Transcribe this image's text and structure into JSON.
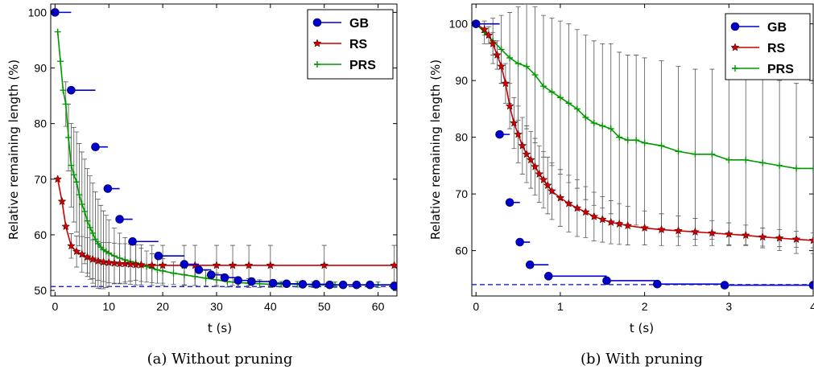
{
  "chart_data": [
    {
      "type": "line",
      "caption": "(a)  Without pruning",
      "xlabel": "t (s)",
      "ylabel": "Relative remaining length (%)",
      "xlim": [
        -0.8,
        63.5
      ],
      "ylim": [
        49,
        101.5
      ],
      "xticks": [
        0,
        10,
        20,
        30,
        40,
        50,
        60
      ],
      "yticks": [
        50,
        60,
        70,
        80,
        90,
        100
      ],
      "legend": {
        "position": "top-right",
        "entries": [
          "GB",
          "RS",
          "PRS"
        ]
      },
      "reference_line": {
        "y": 50.7,
        "style": "dashed",
        "color": "#0000ff"
      },
      "series": [
        {
          "name": "GB",
          "color": "#0000cc",
          "marker": "circle",
          "style": "step",
          "x": [
            0,
            3,
            7.5,
            9.8,
            12,
            14.4,
            19.2,
            24,
            26.7,
            29,
            31.5,
            34,
            36.5,
            40.5,
            43,
            46,
            48.5,
            51,
            53.5,
            56,
            58.5,
            63
          ],
          "y": [
            100,
            86,
            75.8,
            68.3,
            62.8,
            58.8,
            56.2,
            54.7,
            53.7,
            52.8,
            52.3,
            51.8,
            51.6,
            51.3,
            51.2,
            51.1,
            51.1,
            51,
            51,
            51,
            51,
            50.8
          ]
        },
        {
          "name": "RS",
          "color": "#cc0000",
          "marker": "star",
          "style": "line",
          "x": [
            0.5,
            1.3,
            2,
            3,
            4,
            5,
            6,
            7,
            8,
            9,
            10,
            11,
            12,
            13,
            14,
            15,
            16,
            18,
            20,
            24,
            26,
            30,
            33,
            36,
            40,
            50,
            63
          ],
          "y": [
            70,
            66,
            61.5,
            58,
            57,
            56.5,
            56,
            55.6,
            55.3,
            55.1,
            55,
            54.9,
            54.8,
            54.8,
            54.7,
            54.6,
            54.6,
            54.5,
            54.5,
            54.5,
            54.5,
            54.5,
            54.5,
            54.5,
            54.5,
            54.5,
            54.5
          ],
          "err": [
            0,
            0,
            0,
            2.2,
            2.8,
            3.2,
            3.5,
            3.5,
            3.5,
            3.5,
            3.6,
            3.6,
            3.6,
            3.6,
            3.6,
            3.6,
            3.6,
            3.6,
            3.6,
            3.6,
            3.6,
            3.6,
            3.6,
            3.6,
            3.6,
            3.6,
            3.6
          ]
        },
        {
          "name": "PRS",
          "color": "#009900",
          "marker": "plus",
          "style": "line",
          "x": [
            0.5,
            1,
            1.5,
            2,
            2.5,
            3,
            3.5,
            4,
            4.5,
            5,
            5.5,
            6,
            6.5,
            7,
            7.5,
            8,
            8.5,
            9,
            9.5,
            10,
            11,
            12,
            13,
            14,
            15,
            16,
            17,
            18,
            19,
            20,
            22,
            24,
            26,
            28,
            30,
            32,
            34,
            36,
            38,
            40,
            42,
            45,
            48,
            52,
            56,
            60,
            63
          ],
          "y": [
            96.5,
            91.2,
            86,
            83.5,
            77.5,
            72.5,
            70.8,
            69.5,
            67.2,
            65.5,
            64.2,
            62.5,
            61.3,
            60.3,
            59.2,
            58.4,
            57.8,
            57.3,
            57,
            56.7,
            56.2,
            55.8,
            55.5,
            55.2,
            55,
            54.6,
            54.3,
            54,
            53.7,
            53.5,
            53.1,
            52.8,
            52.5,
            52.2,
            51.9,
            51.6,
            51.4,
            51.3,
            51.2,
            51.1,
            51.1,
            51.1,
            51,
            51,
            51,
            51,
            51
          ],
          "err": [
            0,
            0,
            0,
            4,
            6,
            7.5,
            8.5,
            9,
            9.2,
            9.4,
            9.4,
            9.4,
            9.3,
            9,
            8.5,
            8,
            7.5,
            7,
            6.5,
            6,
            5,
            4.5,
            4,
            3.5,
            3.2,
            3,
            2.8,
            2.6,
            2.4,
            2.2,
            2,
            1.8,
            1.6,
            1.4,
            1.2,
            1,
            0.9,
            0.8,
            0.7,
            0.6,
            0.5,
            0.5,
            0.5,
            0.5,
            0.5,
            0.5,
            0.5
          ]
        }
      ]
    },
    {
      "type": "line",
      "caption": "(b)  With pruning",
      "xlabel": "t (s)",
      "ylabel": "Relative remaining length (%)",
      "xlim": [
        -0.05,
        4.0
      ],
      "ylim": [
        52,
        103.5
      ],
      "xticks": [
        0,
        1,
        2,
        3,
        4
      ],
      "yticks": [
        60,
        70,
        80,
        90,
        100
      ],
      "legend": {
        "position": "top-right",
        "entries": [
          "GB",
          "RS",
          "PRS"
        ]
      },
      "reference_line": {
        "y": 54,
        "style": "dashed",
        "color": "#0000ff"
      },
      "series": [
        {
          "name": "GB",
          "color": "#0000cc",
          "marker": "circle",
          "style": "step",
          "x": [
            0,
            0.28,
            0.4,
            0.52,
            0.64,
            0.86,
            1.55,
            2.15,
            2.95,
            4.0
          ],
          "y": [
            100,
            80.5,
            68.5,
            61.5,
            57.5,
            55.5,
            54.7,
            54.1,
            53.9,
            53.9
          ]
        },
        {
          "name": "RS",
          "color": "#cc0000",
          "marker": "star",
          "style": "line",
          "x": [
            0,
            0.1,
            0.15,
            0.2,
            0.25,
            0.3,
            0.35,
            0.4,
            0.45,
            0.5,
            0.55,
            0.6,
            0.65,
            0.7,
            0.75,
            0.8,
            0.85,
            0.9,
            1.0,
            1.1,
            1.2,
            1.3,
            1.4,
            1.5,
            1.6,
            1.7,
            1.8,
            2.0,
            2.2,
            2.4,
            2.6,
            2.8,
            3.0,
            3.2,
            3.4,
            3.6,
            3.8,
            4.0
          ],
          "y": [
            100,
            99,
            98,
            96.5,
            94.5,
            92.5,
            89.5,
            85.5,
            82.5,
            80.5,
            78.5,
            77,
            76,
            74.8,
            73.5,
            72.5,
            71.5,
            70.5,
            69.3,
            68.3,
            67.5,
            66.8,
            66,
            65.5,
            65,
            64.7,
            64.4,
            64,
            63.7,
            63.5,
            63.3,
            63.1,
            62.9,
            62.7,
            62.4,
            62.2,
            62,
            61.8
          ],
          "err": [
            0,
            1,
            1.5,
            2,
            2.5,
            3,
            3.5,
            4,
            4.5,
            5,
            5,
            5,
            5,
            5,
            5,
            5,
            5,
            5,
            5,
            5,
            5,
            4.5,
            4.3,
            4,
            3.8,
            3.6,
            3.4,
            3,
            2.8,
            2.6,
            2.4,
            2.2,
            2,
            1.8,
            1.6,
            1.5,
            1.4,
            1.3
          ]
        },
        {
          "name": "PRS",
          "color": "#009900",
          "marker": "plus",
          "style": "line",
          "x": [
            0,
            0.1,
            0.2,
            0.3,
            0.4,
            0.5,
            0.6,
            0.7,
            0.8,
            0.9,
            1.0,
            1.1,
            1.2,
            1.3,
            1.4,
            1.5,
            1.6,
            1.7,
            1.8,
            1.9,
            2.0,
            2.2,
            2.4,
            2.6,
            2.8,
            3.0,
            3.2,
            3.4,
            3.6,
            3.8,
            4.0
          ],
          "y": [
            100,
            98.5,
            97,
            95.5,
            94,
            93,
            92.5,
            91,
            89,
            88,
            87,
            86,
            85,
            83.5,
            82.5,
            82,
            81.5,
            80,
            79.5,
            79.5,
            79,
            78.5,
            77.5,
            77,
            77,
            76,
            76,
            75.5,
            75,
            74.5,
            74.5
          ],
          "err": [
            0,
            2,
            4,
            6,
            8,
            10,
            11,
            12,
            12.5,
            13,
            13.5,
            14,
            14,
            14.5,
            14.5,
            14.5,
            15,
            15,
            15,
            15,
            15,
            15,
            15,
            15,
            15,
            15,
            15,
            15,
            15,
            15,
            15
          ]
        }
      ]
    }
  ]
}
